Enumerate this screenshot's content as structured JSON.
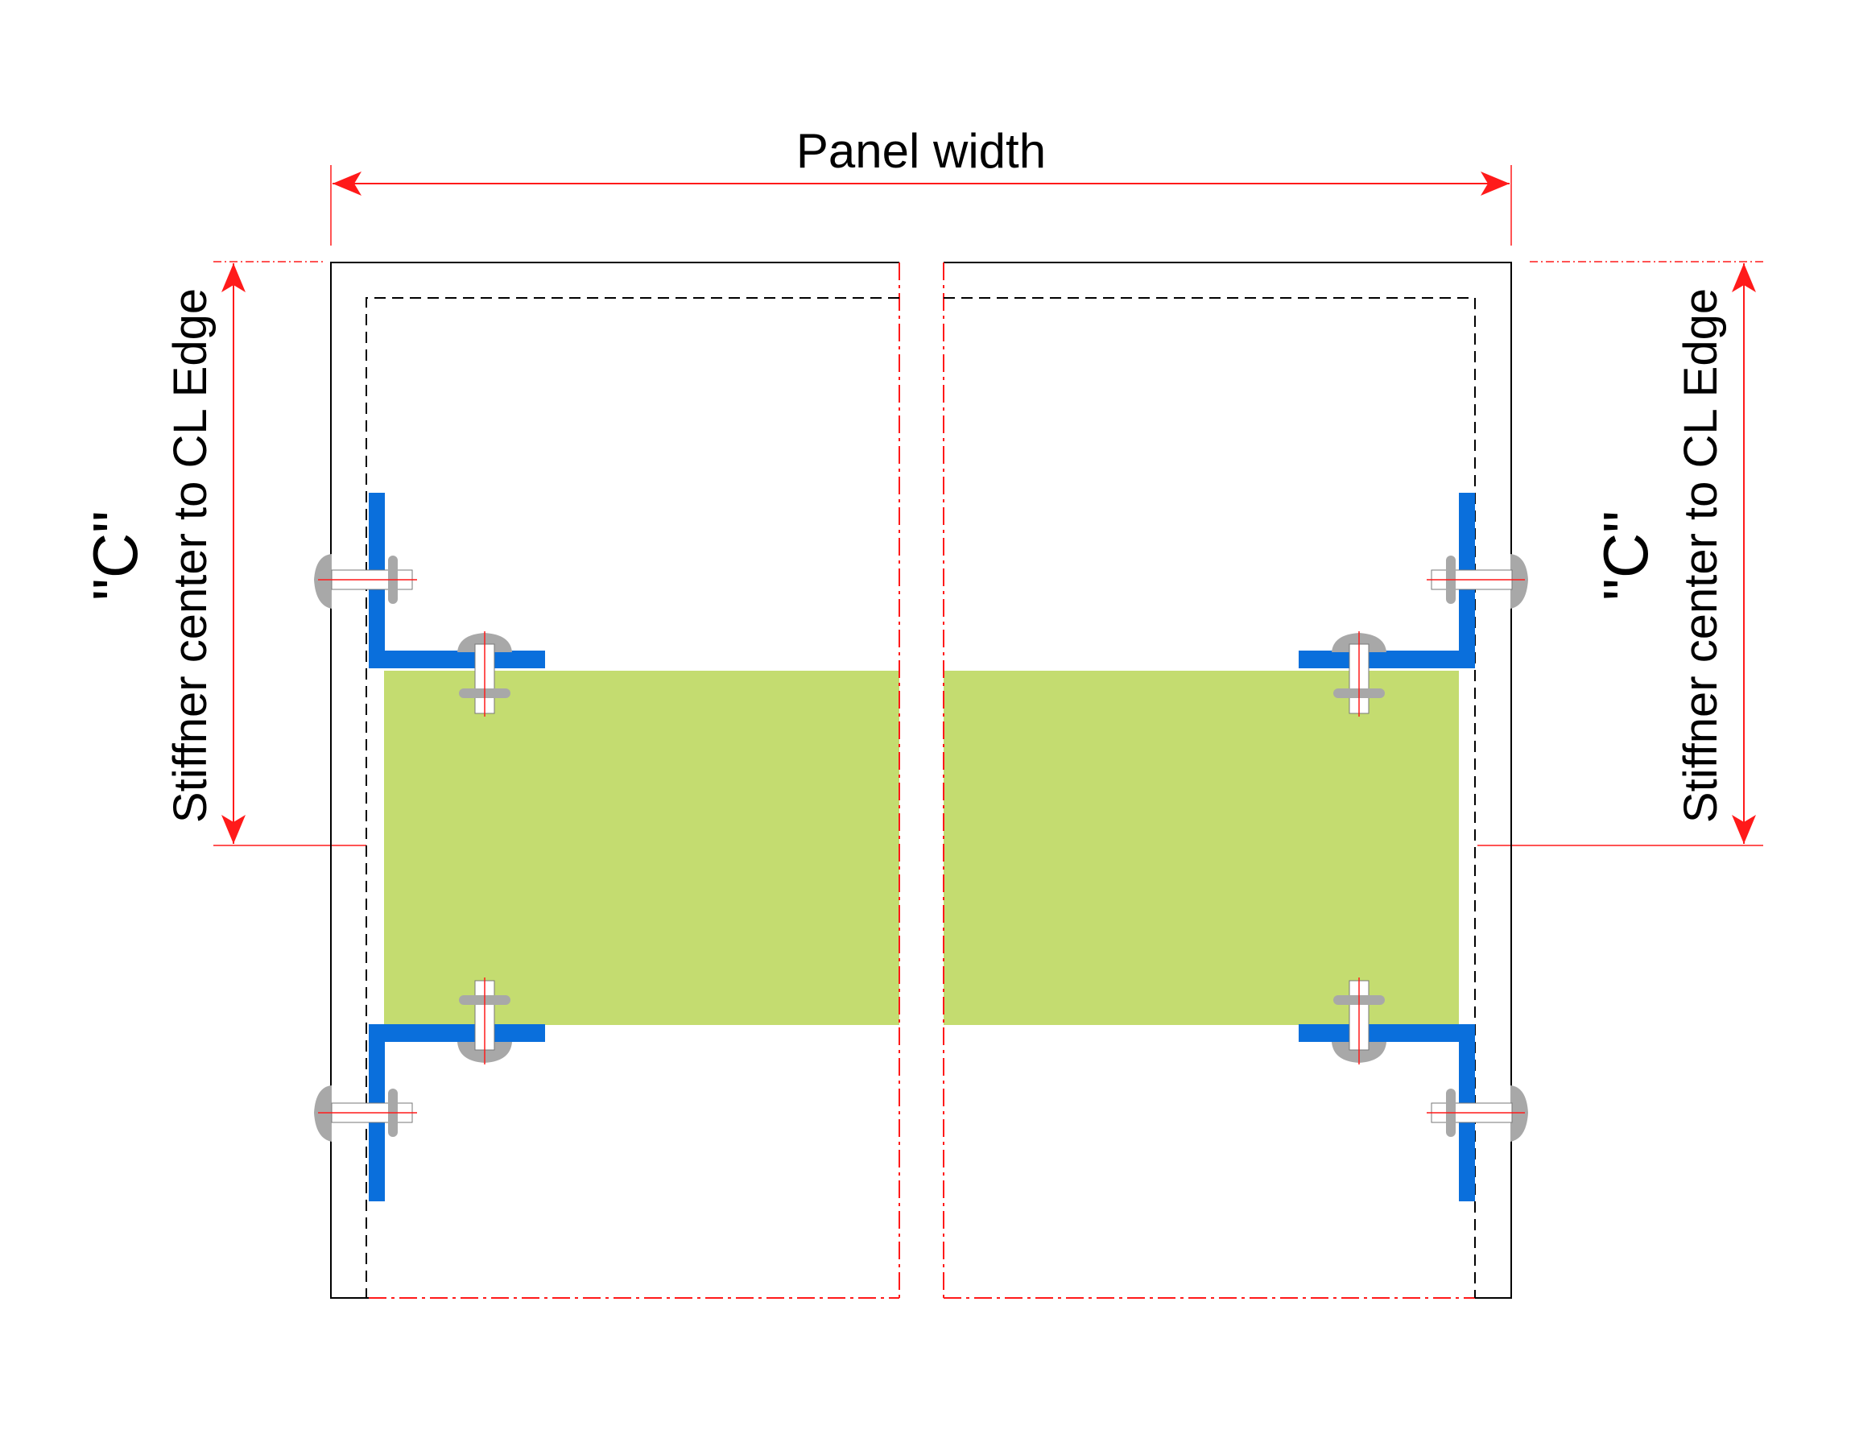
{
  "labels": {
    "panel_width": "Panel width",
    "c_left": "\"C\"",
    "c_right": "\"C\"",
    "stiffner_left": "Stiffner center to CL Edge",
    "stiffner_right": "Stiffner center to CL Edge"
  },
  "colors": {
    "dimension": "#ff1a1a",
    "outline": "#000000",
    "stiffener": "#0a6fdc",
    "fill": "#c4dc70",
    "bolt": "#a8a8a8"
  }
}
